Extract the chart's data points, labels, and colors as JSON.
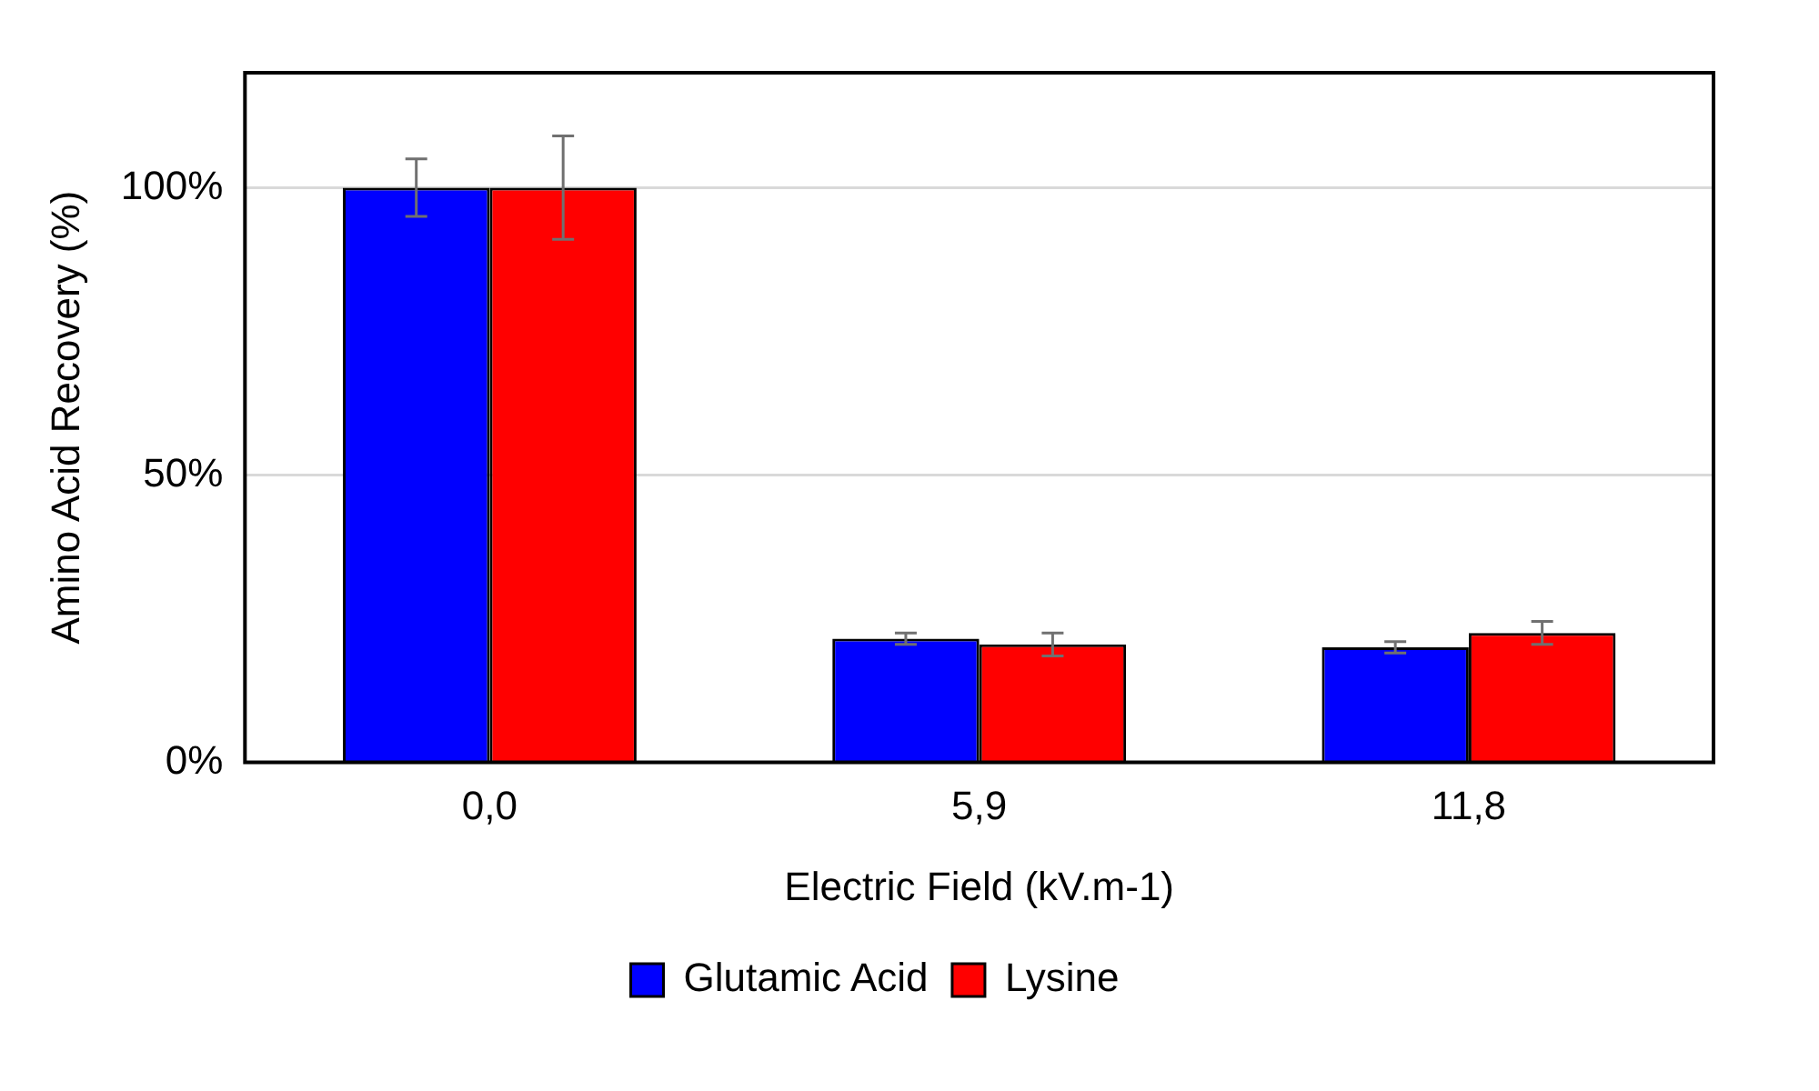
{
  "chart_data": {
    "type": "bar",
    "xlabel": "Electric Field (kV.m-1)",
    "ylabel": "Amino Acid Recovery (%)",
    "categories": [
      "0,0",
      "5,9",
      "11,8"
    ],
    "series": [
      {
        "name": "Glutamic Acid",
        "color": "#0000ff",
        "values": [
          100,
          21.5,
          20
        ],
        "errors": [
          5,
          1,
          1
        ]
      },
      {
        "name": "Lysine",
        "color": "#ff0000",
        "values": [
          100,
          20.5,
          22.5
        ],
        "errors": [
          9,
          2,
          2
        ]
      }
    ],
    "ylim": [
      0,
      120
    ],
    "yticks": [
      {
        "value": 0,
        "label": "0%"
      },
      {
        "value": 50,
        "label": "50%"
      },
      {
        "value": 100,
        "label": "100%"
      }
    ],
    "grid": "y",
    "legend": "bottom"
  }
}
